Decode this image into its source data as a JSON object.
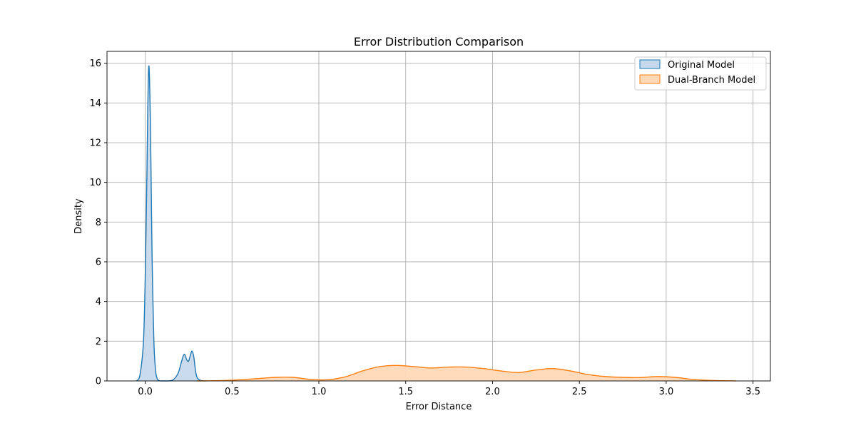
{
  "chart_data": {
    "type": "area",
    "title": "Error Distribution Comparison",
    "xlabel": "Error Distance",
    "ylabel": "Density",
    "xlim": [
      -0.22,
      3.6
    ],
    "ylim": [
      0,
      16.6
    ],
    "xticks": [
      0.0,
      0.5,
      1.0,
      1.5,
      2.0,
      2.5,
      3.0,
      3.5
    ],
    "xtick_labels": [
      "0.0",
      "0.5",
      "1.0",
      "1.5",
      "2.0",
      "2.5",
      "3.0",
      "3.5"
    ],
    "yticks": [
      0,
      2,
      4,
      6,
      8,
      10,
      12,
      14,
      16
    ],
    "ytick_labels": [
      "0",
      "2",
      "4",
      "6",
      "8",
      "10",
      "12",
      "14",
      "16"
    ],
    "grid": true,
    "legend_position": "top-right",
    "series": [
      {
        "name": "Original Model",
        "color": "#1f77b4",
        "fill": "#c6d9ec",
        "x": [
          -0.05,
          -0.03,
          -0.01,
          0.0,
          0.01,
          0.015,
          0.02,
          0.025,
          0.03,
          0.035,
          0.04,
          0.05,
          0.06,
          0.07,
          0.08,
          0.09,
          0.1,
          0.13,
          0.16,
          0.19,
          0.21,
          0.225,
          0.24,
          0.25,
          0.26,
          0.27,
          0.28,
          0.29,
          0.3,
          0.32,
          0.35
        ],
        "y": [
          0.0,
          0.3,
          2.0,
          5.2,
          10.5,
          13.8,
          15.8,
          15.2,
          13.0,
          9.5,
          6.0,
          2.0,
          0.5,
          0.1,
          0.02,
          0.0,
          0.0,
          0.0,
          0.05,
          0.4,
          1.0,
          1.35,
          1.05,
          1.0,
          1.3,
          1.5,
          1.2,
          0.5,
          0.15,
          0.02,
          0.0
        ]
      },
      {
        "name": "Dual-Branch Model",
        "color": "#ff7f0e",
        "fill": "#ffd9b8",
        "x": [
          0.3,
          0.45,
          0.55,
          0.65,
          0.75,
          0.85,
          0.95,
          1.05,
          1.15,
          1.25,
          1.35,
          1.45,
          1.55,
          1.65,
          1.75,
          1.85,
          1.95,
          2.05,
          2.15,
          2.25,
          2.35,
          2.45,
          2.55,
          2.65,
          2.75,
          2.85,
          2.95,
          3.05,
          3.15,
          3.25,
          3.4
        ],
        "y": [
          0.0,
          0.02,
          0.06,
          0.12,
          0.18,
          0.18,
          0.08,
          0.06,
          0.2,
          0.5,
          0.72,
          0.78,
          0.72,
          0.65,
          0.7,
          0.7,
          0.62,
          0.5,
          0.42,
          0.55,
          0.62,
          0.5,
          0.32,
          0.22,
          0.18,
          0.17,
          0.22,
          0.18,
          0.08,
          0.03,
          0.0
        ]
      }
    ]
  }
}
